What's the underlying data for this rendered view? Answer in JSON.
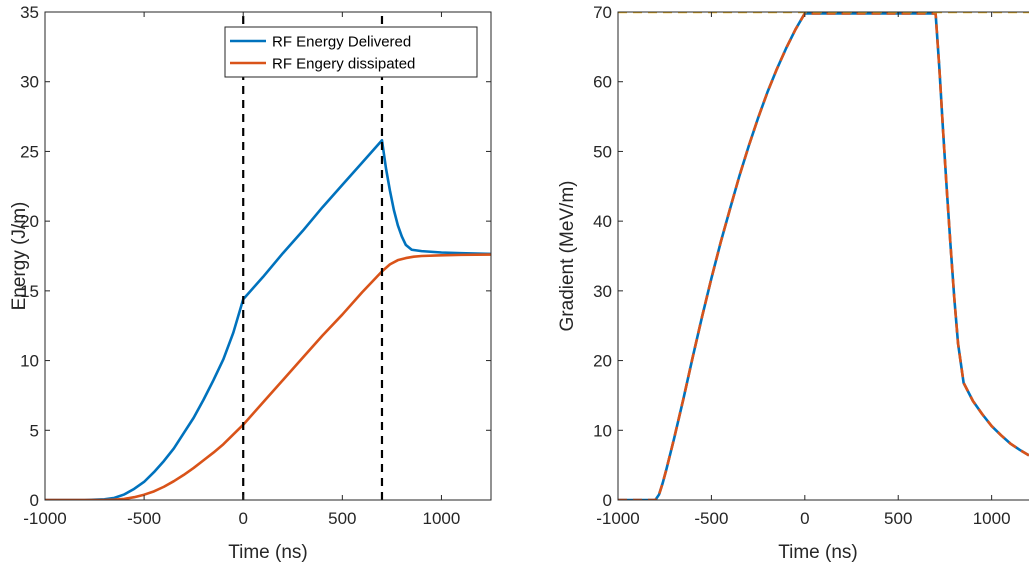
{
  "chart_data": [
    {
      "type": "line",
      "xlabel": "Time (ns)",
      "ylabel": "Energy (J/m)",
      "xlim": [
        -1000,
        1250
      ],
      "ylim": [
        0,
        35
      ],
      "xticks": [
        "-1000",
        "-500",
        "0",
        "500",
        "1000"
      ],
      "yticks": [
        "0",
        "5",
        "10",
        "15",
        "20",
        "25",
        "30",
        "35"
      ],
      "grid": false,
      "legend": "top-right",
      "series": [
        {
          "name": "RF Energy Delivered",
          "color": "#0072BD",
          "x": [
            -1000,
            -800,
            -700,
            -650,
            -600,
            -550,
            -500,
            -450,
            -400,
            -350,
            -300,
            -250,
            -200,
            -150,
            -100,
            -50,
            0,
            100,
            200,
            300,
            400,
            500,
            600,
            700,
            720,
            740,
            760,
            780,
            800,
            820,
            850,
            900,
            1000,
            1100,
            1250
          ],
          "y": [
            0,
            0,
            0.05,
            0.15,
            0.4,
            0.8,
            1.3,
            2.0,
            2.8,
            3.7,
            4.8,
            5.9,
            7.2,
            8.6,
            10.1,
            12.0,
            14.4,
            16.0,
            17.7,
            19.3,
            21.0,
            22.6,
            24.2,
            25.8,
            23.8,
            22.2,
            20.8,
            19.7,
            18.9,
            18.3,
            17.95,
            17.85,
            17.75,
            17.7,
            17.65
          ]
        },
        {
          "name": "RF Engery dissipated",
          "color": "#D95319",
          "x": [
            -1000,
            -800,
            -700,
            -650,
            -600,
            -550,
            -500,
            -450,
            -400,
            -350,
            -300,
            -250,
            -200,
            -150,
            -100,
            -50,
            0,
            100,
            200,
            300,
            400,
            500,
            600,
            700,
            740,
            780,
            820,
            860,
            900,
            1000,
            1100,
            1250
          ],
          "y": [
            0,
            0,
            0,
            0.02,
            0.08,
            0.2,
            0.38,
            0.62,
            0.95,
            1.35,
            1.8,
            2.3,
            2.85,
            3.4,
            4.0,
            4.7,
            5.4,
            7.0,
            8.6,
            10.2,
            11.8,
            13.3,
            14.9,
            16.4,
            16.9,
            17.2,
            17.35,
            17.45,
            17.5,
            17.55,
            17.58,
            17.6
          ]
        },
        {
          "name": "",
          "color": "#000000",
          "style": "dashed",
          "x": [
            0,
            0
          ],
          "y": [
            0,
            35
          ]
        },
        {
          "name": "",
          "color": "#000000",
          "style": "dashed",
          "x": [
            700,
            700
          ],
          "y": [
            0,
            35
          ]
        }
      ]
    },
    {
      "type": "line",
      "xlabel": "Time (ns)",
      "ylabel": "Gradient (MeV/m)",
      "xlim": [
        -1000,
        1200
      ],
      "ylim": [
        0,
        70
      ],
      "xticks": [
        "-1000",
        "-500",
        "0",
        "500",
        "1000"
      ],
      "yticks": [
        "0",
        "10",
        "20",
        "30",
        "40",
        "50",
        "60",
        "70"
      ],
      "grid": false,
      "legend": "none",
      "series": [
        {
          "name": "",
          "color": "#0072BD",
          "x": [
            -1000,
            -800,
            -780,
            -760,
            -740,
            -700,
            -650,
            -600,
            -550,
            -500,
            -450,
            -400,
            -350,
            -300,
            -250,
            -200,
            -150,
            -100,
            -50,
            0,
            100,
            200,
            300,
            400,
            500,
            600,
            700,
            720,
            740,
            760,
            780,
            800,
            820,
            850,
            900,
            950,
            1000,
            1050,
            1100,
            1150,
            1200
          ],
          "y": [
            0,
            0,
            0.8,
            2.5,
            4.5,
            8.8,
            14.5,
            20.5,
            26.3,
            31.8,
            37.0,
            41.8,
            46.5,
            50.8,
            54.8,
            58.5,
            61.8,
            64.8,
            67.5,
            69.8,
            69.8,
            69.8,
            69.8,
            69.8,
            69.8,
            69.8,
            69.8,
            62.0,
            53.0,
            44.5,
            36.5,
            29.0,
            22.5,
            16.8,
            14.2,
            12.3,
            10.6,
            9.3,
            8.1,
            7.2,
            6.4
          ]
        },
        {
          "name": "",
          "color": "#D95319",
          "style": "dashed",
          "x": [
            -1000,
            -800,
            -780,
            -760,
            -740,
            -700,
            -650,
            -600,
            -550,
            -500,
            -450,
            -400,
            -350,
            -300,
            -250,
            -200,
            -150,
            -100,
            -50,
            0,
            100,
            200,
            300,
            400,
            500,
            600,
            700,
            720,
            740,
            760,
            780,
            800,
            820,
            850,
            900,
            950,
            1000,
            1050,
            1100,
            1150,
            1200
          ],
          "y": [
            0,
            0,
            0.8,
            2.5,
            4.5,
            8.8,
            14.5,
            20.5,
            26.3,
            31.8,
            37.0,
            41.8,
            46.5,
            50.8,
            54.8,
            58.5,
            61.8,
            64.8,
            67.5,
            69.8,
            69.8,
            69.8,
            69.8,
            69.8,
            69.8,
            69.8,
            69.8,
            62.0,
            53.0,
            44.5,
            36.5,
            29.0,
            22.5,
            16.8,
            14.2,
            12.3,
            10.6,
            9.3,
            8.1,
            7.2,
            6.4
          ]
        },
        {
          "name": "",
          "color": "#EDB120",
          "style": "dashed",
          "x": [
            -1000,
            1200
          ],
          "y": [
            70,
            70
          ]
        }
      ]
    }
  ]
}
